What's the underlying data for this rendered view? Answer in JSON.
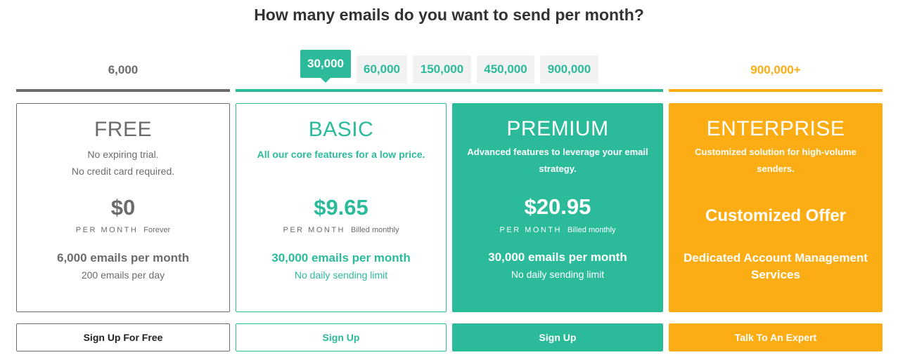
{
  "header": {
    "title": "How many emails do you want to send per month?"
  },
  "tiers": {
    "free": "6,000",
    "enterprise": "900,000+"
  },
  "volumes": [
    {
      "label": "30,000",
      "selected": true
    },
    {
      "label": "60,000"
    },
    {
      "label": "150,000"
    },
    {
      "label": "450,000"
    },
    {
      "label": "900,000"
    }
  ],
  "colors": {
    "teal": "#2bbb9b",
    "orange": "#fdad14",
    "gray": "#6b6b6b"
  },
  "plans": [
    {
      "name": "FREE",
      "desc1": "No expiring trial.",
      "desc2": "No credit card required.",
      "price": "$0",
      "per": "PER MONTH",
      "billing": "Forever",
      "emails": "6,000 emails per month",
      "sub": "200 emails per day",
      "button": "Sign Up For Free"
    },
    {
      "name": "BASIC",
      "desc1": "All our core features for a low price.",
      "price": "$9.65",
      "per": "PER MONTH",
      "billing": "Billed monthly",
      "emails": "30,000 emails per month",
      "sub": "No daily sending limit",
      "button": "Sign Up"
    },
    {
      "name": "PREMIUM",
      "desc1": "Advanced features to leverage your email strategy.",
      "price": "$20.95",
      "per": "PER MONTH",
      "billing": "Billed monthly",
      "emails": "30,000 emails per month",
      "sub": "No daily sending limit",
      "button": "Sign Up"
    },
    {
      "name": "ENTERPRISE",
      "desc1": "Customized solution for high-volume senders.",
      "offer": "Customized Offer",
      "services": "Dedicated Account Management Services",
      "button": "Talk To An Expert"
    }
  ]
}
